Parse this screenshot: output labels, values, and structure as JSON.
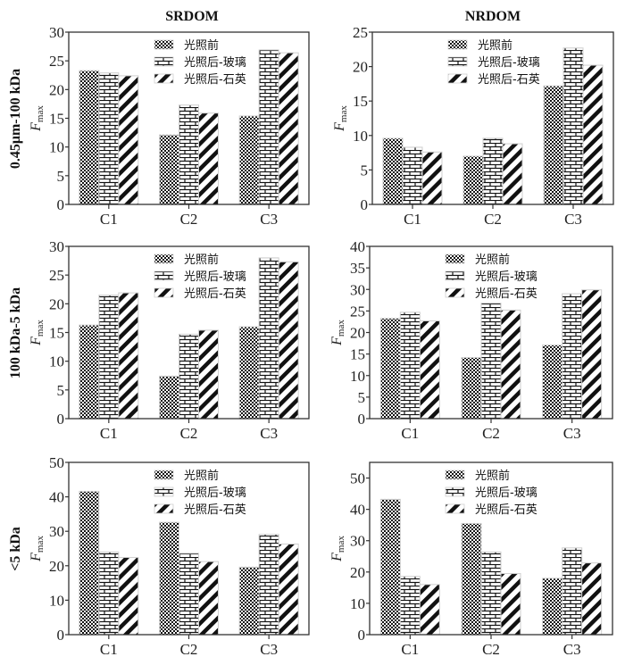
{
  "figure": {
    "column_titles": [
      "SRDOM",
      "NRDOM"
    ],
    "row_labels": [
      "0.45μm-100 kDa",
      "100 kDa-5 kDa",
      "<5 kDa"
    ],
    "ylabel_main": "F",
    "ylabel_sub": "max",
    "legend": [
      "光照前",
      "光照后-玻璃",
      "光照后-石英"
    ],
    "pattern_icons": [
      "checker-pattern-icon",
      "brick-pattern-icon",
      "diagonal-stripe-pattern-icon"
    ]
  },
  "chart_data": [
    {
      "type": "bar",
      "title": "SRDOM",
      "row": "0.45μm-100 kDa",
      "categories": [
        "C1",
        "C2",
        "C3"
      ],
      "series": [
        {
          "name": "光照前",
          "values": [
            23.3,
            12.1,
            15.4
          ]
        },
        {
          "name": "光照后-玻璃",
          "values": [
            22.9,
            17.3,
            26.9
          ]
        },
        {
          "name": "光照后-石英",
          "values": [
            22.4,
            15.9,
            26.4
          ]
        }
      ],
      "xlabel": "",
      "ylabel": "Fmax",
      "ylim": [
        0,
        30
      ],
      "yticks": [
        0,
        5,
        10,
        15,
        20,
        25,
        30
      ],
      "legend_position": "top-center",
      "grid": false
    },
    {
      "type": "bar",
      "title": "NRDOM",
      "row": "0.45μm-100 kDa",
      "categories": [
        "C1",
        "C2",
        "C3"
      ],
      "series": [
        {
          "name": "光照前",
          "values": [
            9.6,
            7.0,
            17.2
          ]
        },
        {
          "name": "光照后-玻璃",
          "values": [
            8.3,
            9.6,
            22.7
          ]
        },
        {
          "name": "光照后-石英",
          "values": [
            7.6,
            8.8,
            20.2
          ]
        }
      ],
      "xlabel": "",
      "ylabel": "Fmax",
      "ylim": [
        0,
        25
      ],
      "yticks": [
        0,
        5,
        10,
        15,
        20,
        25
      ],
      "legend_position": "top-center",
      "grid": false
    },
    {
      "type": "bar",
      "title": "SRDOM",
      "row": "100 kDa-5 kDa",
      "categories": [
        "C1",
        "C2",
        "C3"
      ],
      "series": [
        {
          "name": "光照前",
          "values": [
            16.3,
            7.4,
            16.0
          ]
        },
        {
          "name": "光照后-玻璃",
          "values": [
            21.5,
            14.7,
            28.0
          ]
        },
        {
          "name": "光照后-石英",
          "values": [
            21.9,
            15.4,
            27.3
          ]
        }
      ],
      "xlabel": "",
      "ylabel": "Fmax",
      "ylim": [
        0,
        30
      ],
      "yticks": [
        0,
        5,
        10,
        15,
        20,
        25,
        30
      ],
      "legend_position": "top-center",
      "grid": false
    },
    {
      "type": "bar",
      "title": "NRDOM",
      "row": "100 kDa-5 kDa",
      "categories": [
        "C1",
        "C2",
        "C3"
      ],
      "series": [
        {
          "name": "光照前",
          "values": [
            23.3,
            14.2,
            17.1
          ]
        },
        {
          "name": "光照后-玻璃",
          "values": [
            24.7,
            26.8,
            29.0
          ]
        },
        {
          "name": "光照后-石英",
          "values": [
            22.7,
            25.2,
            29.9
          ]
        }
      ],
      "xlabel": "",
      "ylabel": "Fmax",
      "ylim": [
        0,
        40
      ],
      "yticks": [
        0,
        5,
        10,
        15,
        20,
        25,
        30,
        35,
        40
      ],
      "legend_position": "top-center",
      "grid": false
    },
    {
      "type": "bar",
      "title": "SRDOM",
      "row": "<5 kDa",
      "categories": [
        "C1",
        "C2",
        "C3"
      ],
      "series": [
        {
          "name": "光照前",
          "values": [
            41.6,
            32.6,
            19.6
          ]
        },
        {
          "name": "光照后-玻璃",
          "values": [
            24.0,
            23.6,
            29.1
          ]
        },
        {
          "name": "光照后-石英",
          "values": [
            22.4,
            21.2,
            26.3
          ]
        }
      ],
      "xlabel": "",
      "ylabel": "Fmax",
      "ylim": [
        0,
        50
      ],
      "yticks": [
        0,
        10,
        20,
        30,
        40,
        50
      ],
      "legend_position": "top-center",
      "grid": false
    },
    {
      "type": "bar",
      "title": "NRDOM",
      "row": "<5 kDa",
      "categories": [
        "C1",
        "C2",
        "C3"
      ],
      "series": [
        {
          "name": "光照前",
          "values": [
            43.2,
            35.5,
            18.0
          ]
        },
        {
          "name": "光照后-玻璃",
          "values": [
            18.6,
            26.4,
            27.7
          ]
        },
        {
          "name": "光照后-石英",
          "values": [
            16.0,
            19.5,
            22.9
          ]
        }
      ],
      "xlabel": "",
      "ylabel": "Fmax",
      "ylim": [
        0,
        55
      ],
      "yticks": [
        0,
        10,
        20,
        30,
        40,
        50
      ],
      "legend_position": "top-center",
      "grid": false
    }
  ]
}
